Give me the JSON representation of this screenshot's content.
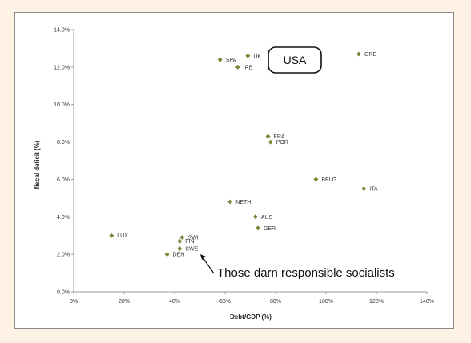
{
  "chart_data": {
    "type": "scatter",
    "title": "",
    "xlabel": "Debt/GDP (%)",
    "ylabel": "fiscal deficit (%)",
    "xlim": [
      0,
      140
    ],
    "ylim": [
      0,
      14
    ],
    "x_ticks": [
      "0%",
      "20%",
      "40%",
      "60%",
      "80%",
      "100%",
      "120%",
      "140%"
    ],
    "y_ticks": [
      "0.0%",
      "2.0%",
      "4.0%",
      "6.0%",
      "8.0%",
      "10.0%",
      "12.0%",
      "14.0%"
    ],
    "grid": false,
    "marker_color": "#7a8a3a",
    "points": [
      {
        "label": "SPA",
        "x": 58,
        "y": 12.4
      },
      {
        "label": "UK",
        "x": 69,
        "y": 12.6
      },
      {
        "label": "IRE",
        "x": 65,
        "y": 12.0
      },
      {
        "label": "GRE",
        "x": 113,
        "y": 12.7
      },
      {
        "label": "FRA",
        "x": 77,
        "y": 8.3
      },
      {
        "label": "POR",
        "x": 78,
        "y": 8.0
      },
      {
        "label": "BELG",
        "x": 96,
        "y": 6.0
      },
      {
        "label": "ITA",
        "x": 115,
        "y": 5.5
      },
      {
        "label": "NETH",
        "x": 62,
        "y": 4.8
      },
      {
        "label": "AUS",
        "x": 72,
        "y": 4.0
      },
      {
        "label": "GER",
        "x": 73,
        "y": 3.4
      },
      {
        "label": "LUX",
        "x": 15,
        "y": 3.0
      },
      {
        "label": "SWI",
        "x": 43,
        "y": 2.9
      },
      {
        "label": "FIN",
        "x": 42,
        "y": 2.7
      },
      {
        "label": "SWE",
        "x": 42,
        "y": 2.3
      },
      {
        "label": "DEN",
        "x": 37,
        "y": 2.0
      }
    ],
    "annotations": {
      "usa_box": "USA",
      "callout": "Those darn responsible socialists"
    }
  }
}
